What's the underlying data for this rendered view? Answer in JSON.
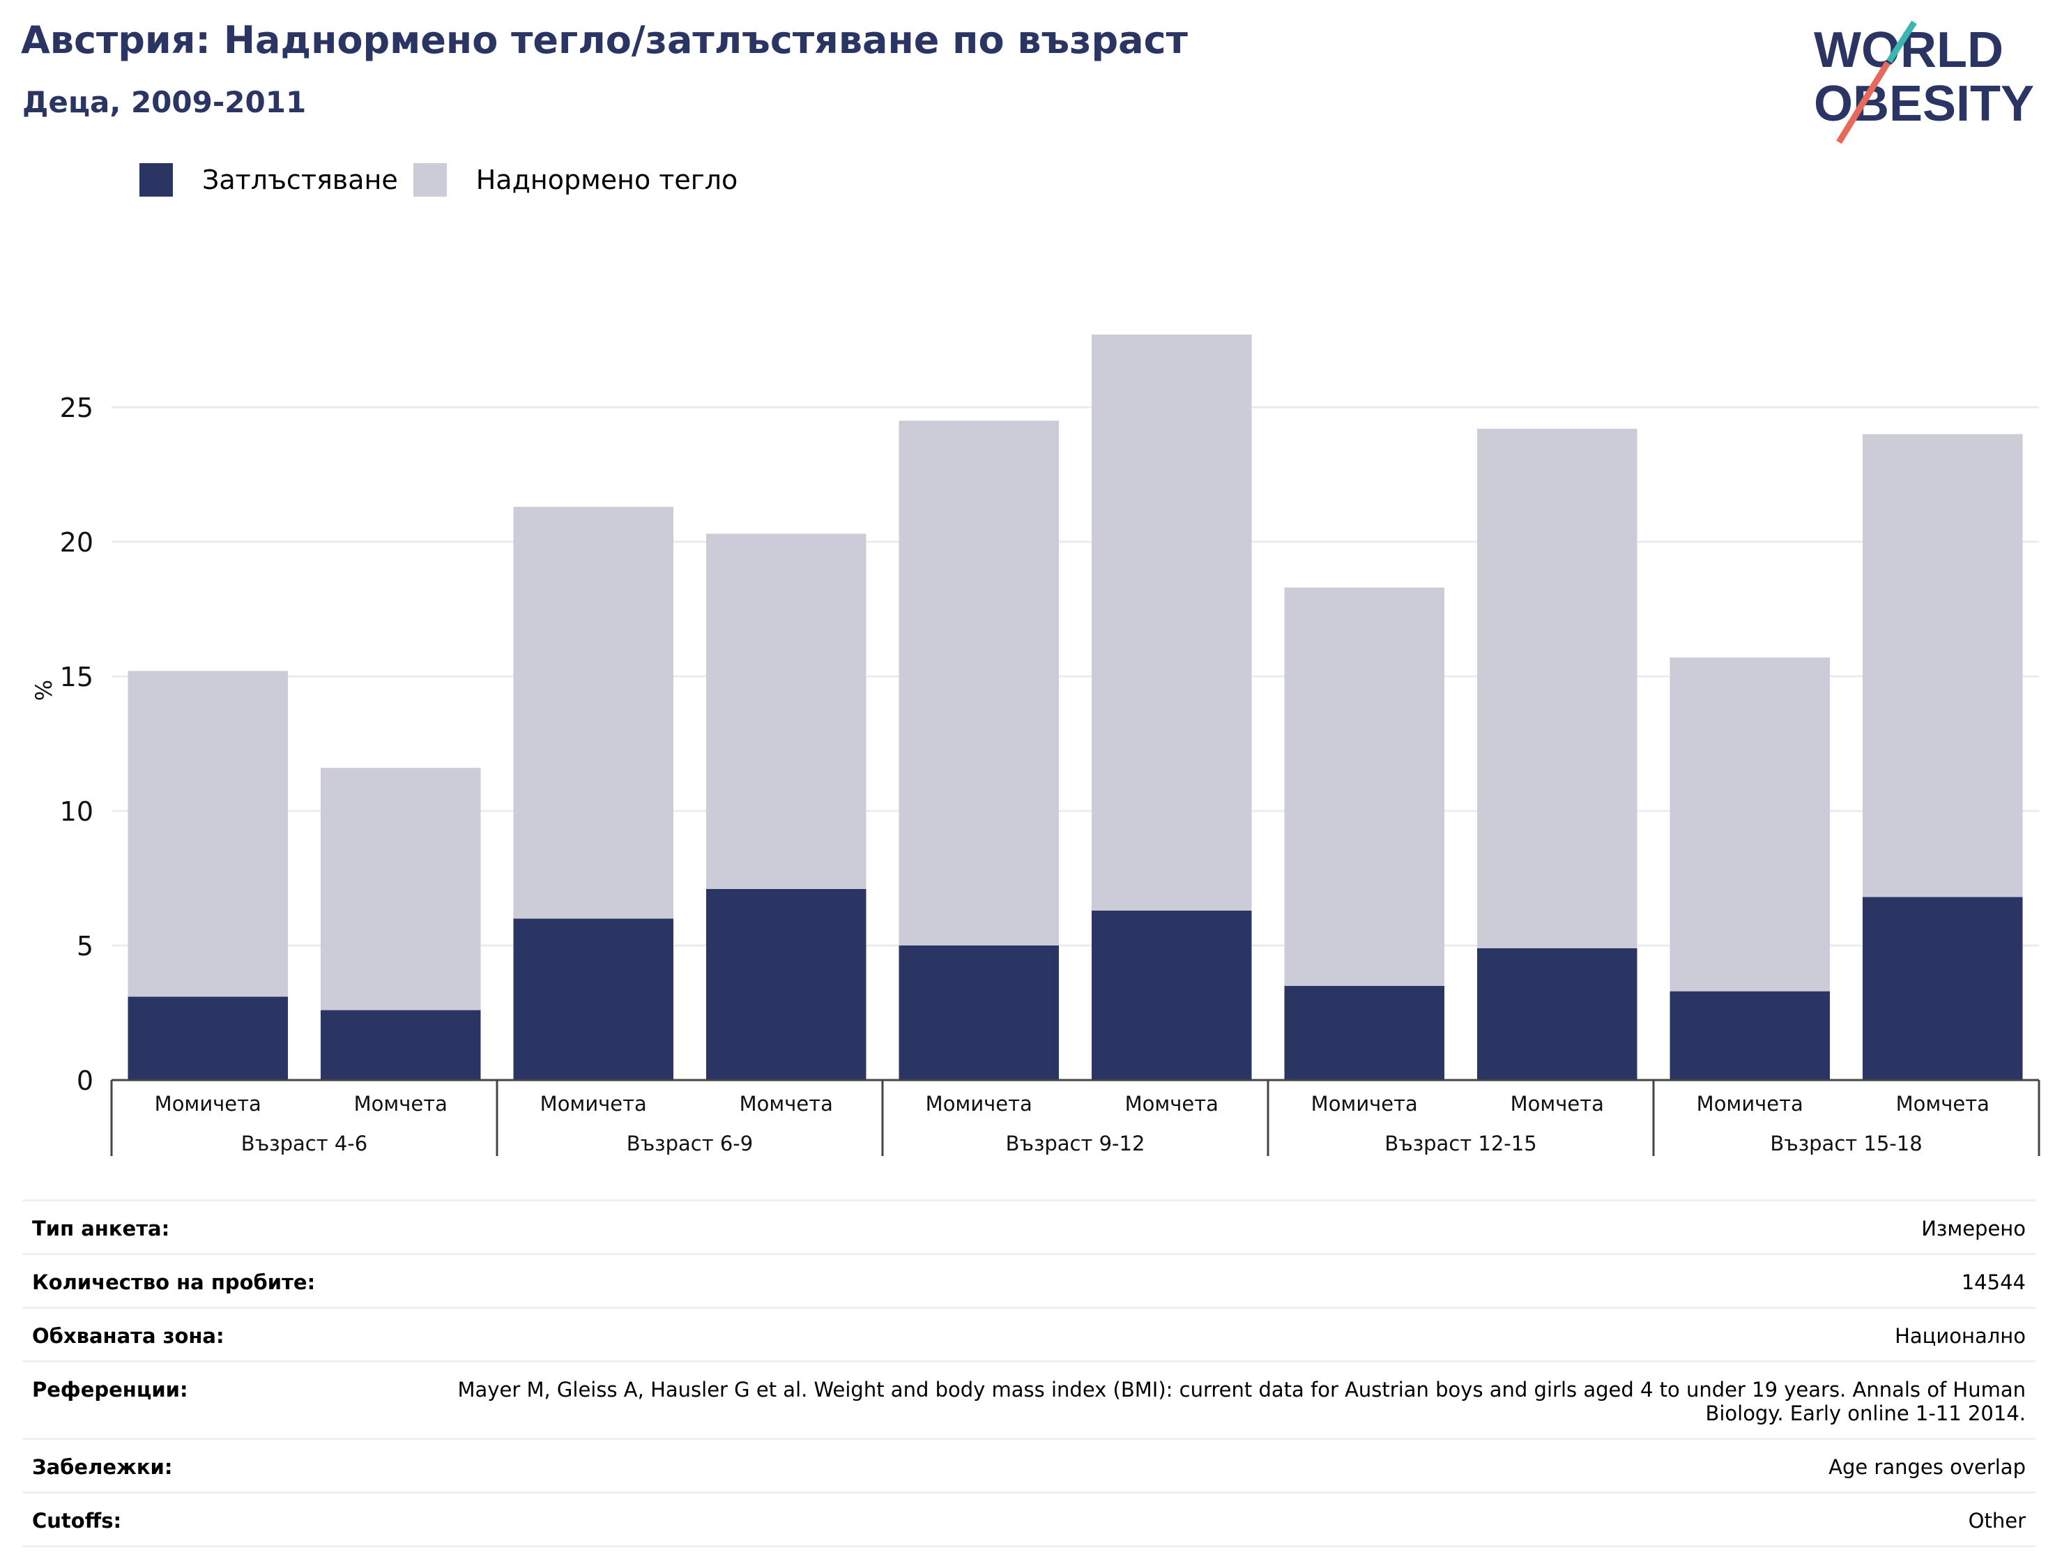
{
  "header": {
    "title": "Австрия: Наднормено тегло/затлъстяване по възраст",
    "subtitle": "Деца, 2009-2011"
  },
  "logo": {
    "line1": "WORLD",
    "line2": "OBESITY"
  },
  "legend": {
    "items": [
      {
        "label": "Затлъстяване",
        "color": "#2a3563"
      },
      {
        "label": "Наднормено тегло",
        "color": "#cbccd8"
      }
    ]
  },
  "chart_data": {
    "type": "bar",
    "stacked": true,
    "ylabel": "%",
    "ylim": [
      0,
      30
    ],
    "yticks": [
      0,
      5,
      10,
      15,
      20,
      25
    ],
    "grid": true,
    "legend_position": "top-left",
    "groups": [
      "Възраст 4-6",
      "Възраст 6-9",
      "Възраст 9-12",
      "Възраст 12-15",
      "Възраст 15-18"
    ],
    "categories": [
      "Момичета",
      "Момчета",
      "Момичета",
      "Момчета",
      "Момичета",
      "Момчета",
      "Момичета",
      "Момчета",
      "Момичета",
      "Момчета"
    ],
    "series": [
      {
        "name": "Затлъстяване",
        "color": "#2a3563",
        "values": [
          3.1,
          2.6,
          6.0,
          7.1,
          5.0,
          6.3,
          3.5,
          4.9,
          3.3,
          6.8
        ]
      },
      {
        "name": "Наднормено тегло",
        "color": "#cbccd8",
        "values": [
          12.1,
          9.0,
          15.3,
          13.2,
          19.5,
          21.4,
          14.8,
          19.3,
          12.4,
          17.2
        ]
      }
    ]
  },
  "info": {
    "rows": [
      {
        "label": "Тип анкета:",
        "value": "Измерено"
      },
      {
        "label": "Количество на пробите:",
        "value": "14544"
      },
      {
        "label": "Обхваната зона:",
        "value": "Национално"
      },
      {
        "label": "Референции:",
        "value": "Mayer M, Gleiss A, Hausler G et al. Weight and body mass index (BMI): current data for Austrian boys and girls aged 4 to under 19 years. Annals of Human Biology. Early online 1-11 2014."
      },
      {
        "label": "Забележки:",
        "value": "Age ranges overlap"
      },
      {
        "label": "Cutoffs:",
        "value": "Other"
      }
    ]
  }
}
